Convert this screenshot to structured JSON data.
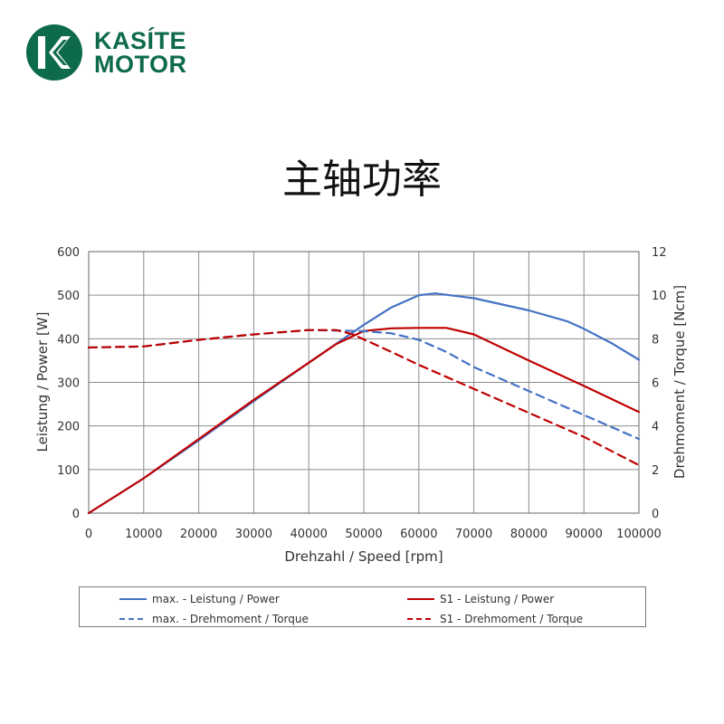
{
  "brand": {
    "line1": "KASÍTE",
    "line2": "MOTOR",
    "logo_icon": "kasite-k-logo",
    "color": "#0e6b4a"
  },
  "page_title": "主轴功率",
  "chart_data": {
    "type": "line",
    "title": "主轴功率",
    "xlabel": "Drehzahl / Speed [rpm]",
    "ylabel_left": "Leistung / Power [W]",
    "ylabel_right": "Drehmoment / Torque [Ncm]",
    "xlim": [
      0,
      100000
    ],
    "ylim_left": [
      0,
      600
    ],
    "ylim_right": [
      0,
      12
    ],
    "x_ticks": [
      "0",
      "10000",
      "20000",
      "30000",
      "40000",
      "50000",
      "60000",
      "70000",
      "80000",
      "90000",
      "100000"
    ],
    "y_ticks_left": [
      "0",
      "100",
      "200",
      "300",
      "400",
      "500",
      "600"
    ],
    "y_ticks_right": [
      "0",
      "2",
      "4",
      "6",
      "8",
      "10",
      "12"
    ],
    "grid": true,
    "legend_position": "bottom",
    "series": [
      {
        "name": "max. - Leistung / Power",
        "axis": "left",
        "color": "#4472c4",
        "dash": false,
        "points": [
          [
            0,
            0
          ],
          [
            10000,
            80
          ],
          [
            20000,
            167
          ],
          [
            30000,
            257
          ],
          [
            40000,
            345
          ],
          [
            50000,
            432
          ],
          [
            55000,
            472
          ],
          [
            60000,
            500
          ],
          [
            63000,
            504
          ],
          [
            70000,
            493
          ],
          [
            80000,
            465
          ],
          [
            87000,
            440
          ],
          [
            90000,
            423
          ],
          [
            95000,
            390
          ],
          [
            100000,
            352
          ]
        ]
      },
      {
        "name": "S1 - Leistung / Power",
        "axis": "left",
        "color": "#c00000",
        "dash": false,
        "points": [
          [
            0,
            0
          ],
          [
            10000,
            80
          ],
          [
            20000,
            170
          ],
          [
            30000,
            260
          ],
          [
            40000,
            345
          ],
          [
            45000,
            388
          ],
          [
            50000,
            418
          ],
          [
            55000,
            424
          ],
          [
            60000,
            425
          ],
          [
            65000,
            425
          ],
          [
            70000,
            410
          ],
          [
            80000,
            350
          ],
          [
            90000,
            292
          ],
          [
            100000,
            232
          ]
        ]
      },
      {
        "name": "max. - Drehmoment / Torque",
        "axis": "right",
        "color": "#4472c4",
        "dash": true,
        "points": [
          [
            0,
            7.6
          ],
          [
            10000,
            7.65
          ],
          [
            20000,
            7.95
          ],
          [
            30000,
            8.2
          ],
          [
            40000,
            8.4
          ],
          [
            50000,
            8.35
          ],
          [
            55000,
            8.25
          ],
          [
            60000,
            7.95
          ],
          [
            65000,
            7.4
          ],
          [
            70000,
            6.7
          ],
          [
            80000,
            5.6
          ],
          [
            90000,
            4.5
          ],
          [
            100000,
            3.4
          ]
        ]
      },
      {
        "name": "S1 - Drehmoment / Torque",
        "axis": "right",
        "color": "#c00000",
        "dash": true,
        "points": [
          [
            0,
            7.6
          ],
          [
            10000,
            7.65
          ],
          [
            20000,
            7.95
          ],
          [
            30000,
            8.2
          ],
          [
            40000,
            8.4
          ],
          [
            45000,
            8.4
          ],
          [
            48000,
            8.2
          ],
          [
            55000,
            7.4
          ],
          [
            60000,
            6.8
          ],
          [
            70000,
            5.7
          ],
          [
            80000,
            4.6
          ],
          [
            90000,
            3.5
          ],
          [
            100000,
            2.2
          ]
        ]
      }
    ]
  }
}
